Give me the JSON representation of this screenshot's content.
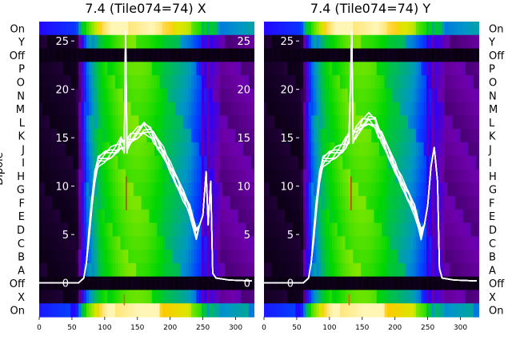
{
  "chart_data": [
    {
      "type": "heatmap",
      "title": "7.4 (Tile074=74) X",
      "ylabel": "Dipole",
      "dipole_rows": [
        "On",
        "Y",
        "Off",
        "P",
        "O",
        "N",
        "M",
        "L",
        "K",
        "J",
        "I",
        "H",
        "G",
        "F",
        "E",
        "D",
        "C",
        "B",
        "A",
        "Off",
        "X",
        "On"
      ],
      "x_ticks": [
        0,
        50,
        100,
        150,
        200,
        250,
        300
      ],
      "xlim": [
        0,
        325
      ],
      "overlay_y_ticks": [
        0,
        5,
        10,
        15,
        20,
        25
      ],
      "overlay_ylim": [
        -3.5,
        27
      ],
      "overlay_curve": {
        "x": [
          0,
          60,
          68,
          72,
          76,
          80,
          85,
          90,
          100,
          110,
          120,
          125,
          130,
          132,
          134,
          136,
          140,
          150,
          160,
          170,
          175,
          180,
          190,
          200,
          210,
          220,
          230,
          240,
          245,
          250,
          255,
          258,
          262,
          265,
          270,
          290,
          325
        ],
        "y": [
          0,
          0,
          0.5,
          2,
          5,
          8,
          11,
          12.5,
          13,
          13.5,
          14,
          14.5,
          14,
          26,
          14,
          14.5,
          15,
          15.5,
          16,
          15.5,
          15,
          14.5,
          13.5,
          12,
          10.5,
          9,
          7.5,
          5,
          6,
          7,
          11.5,
          6,
          10.5,
          1,
          0.5,
          0.3,
          0.2
        ]
      },
      "colormap": "gnuplot2"
    },
    {
      "type": "heatmap",
      "title": "7.4 (Tile074=74) Y",
      "ylabel": "",
      "dipole_rows": [
        "On",
        "Y",
        "Off",
        "P",
        "O",
        "N",
        "M",
        "L",
        "K",
        "J",
        "I",
        "H",
        "G",
        "F",
        "E",
        "D",
        "C",
        "B",
        "A",
        "Off",
        "X",
        "On"
      ],
      "x_ticks": [
        0,
        50,
        100,
        150,
        200,
        250,
        300
      ],
      "xlim": [
        0,
        325
      ],
      "overlay_y_ticks": [
        0,
        5,
        10,
        15,
        20,
        25
      ],
      "overlay_ylim": [
        -3.5,
        27
      ],
      "overlay_curve": {
        "x": [
          0,
          60,
          68,
          72,
          76,
          80,
          85,
          90,
          100,
          110,
          120,
          125,
          130,
          134,
          136,
          140,
          150,
          160,
          170,
          175,
          180,
          190,
          200,
          210,
          220,
          230,
          240,
          245,
          250,
          255,
          260,
          265,
          268,
          272,
          290,
          325
        ],
        "y": [
          0,
          0,
          0.5,
          2,
          5,
          8,
          11,
          12.5,
          13,
          13.5,
          14,
          14.5,
          15,
          26,
          15,
          15.5,
          16.5,
          17,
          16.5,
          15.5,
          15,
          13.5,
          12,
          10.5,
          9,
          7.5,
          5,
          6,
          8,
          12,
          14,
          10.5,
          1.5,
          0.5,
          0.3,
          0.2
        ]
      },
      "colormap": "gnuplot2"
    }
  ]
}
